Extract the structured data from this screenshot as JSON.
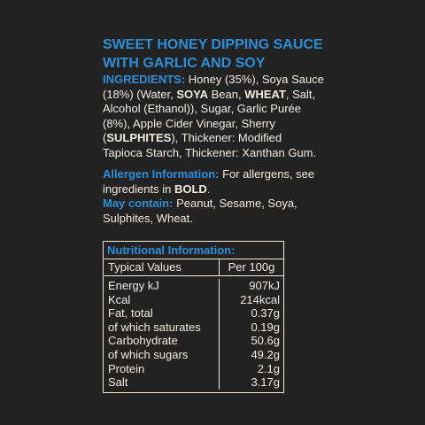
{
  "title_line1": "SWEET HONEY DIPPING SAUCE",
  "title_line2": "WITH GARLIC AND SOY",
  "ingredients": {
    "heading": "INGREDIENTS:",
    "t1": " Honey (35%), Soya Sauce (18%) (Water, ",
    "b1": "SOYA",
    "t2": " Bean, ",
    "b2": "WHEAT",
    "t3": ", Salt, Alcohol (Ethanol)), Sugar, Garlic Purée (8%), Apple Cider Vinegar, Sherry (",
    "b3": "SULPHITES",
    "t4": "), Thickener: Modified Tapioca Starch, Thickener: Xanthan Gum."
  },
  "allergen": {
    "heading": "Allergen Information:",
    "t1": " For allergens, see ingredients in ",
    "b1": "BOLD",
    "t2": "."
  },
  "may_contain": {
    "heading": "May contain:",
    "text": " Peanut, Sesame, Soya, Sulphites, Wheat."
  },
  "nutrition": {
    "header": "Nutritional Information:",
    "col_values": "Typical Values",
    "col_per": "Per 100g",
    "rows": [
      {
        "name": "Energy kJ",
        "value": "907kJ"
      },
      {
        "name": "Kcal",
        "value": "214kcal"
      },
      {
        "name": "Fat, total",
        "value": "0.37g"
      },
      {
        "name": "of which saturates",
        "value": "0.19g"
      },
      {
        "name": "Carbohydrate",
        "value": "50.6g"
      },
      {
        "name": "of which sugars",
        "value": "49.2g"
      },
      {
        "name": "Protein",
        "value": "2.1g"
      },
      {
        "name": "Salt",
        "value": "3.17g"
      }
    ]
  },
  "colors": {
    "background": "#222222",
    "accent_blue": "#2b8fd8",
    "text": "#f2ede4"
  }
}
